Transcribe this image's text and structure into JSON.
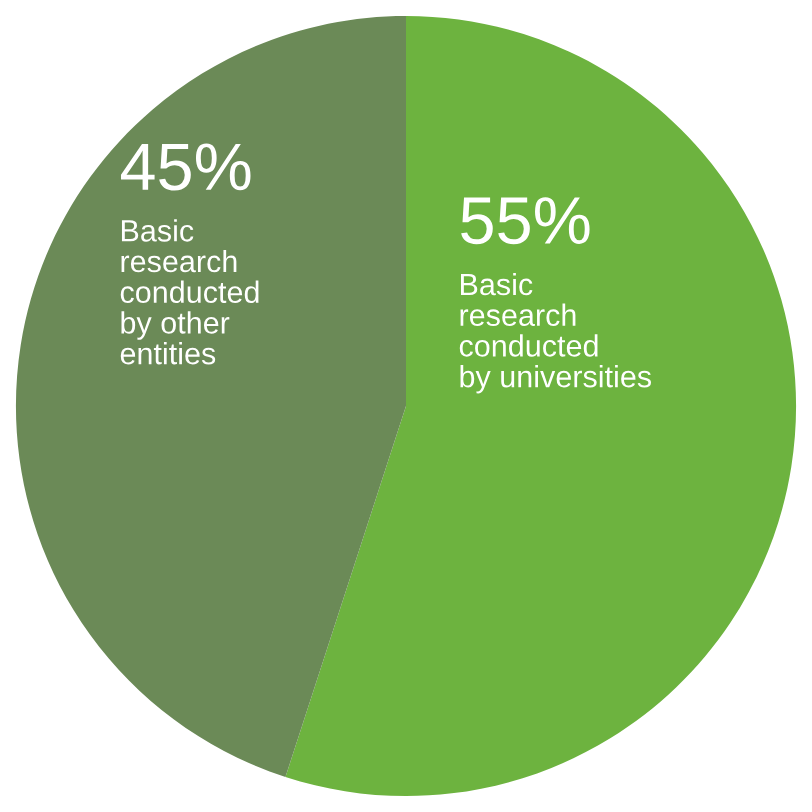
{
  "chart_data": {
    "type": "pie",
    "categories": [
      "Basic\nresearch\nconducted\nby universities",
      "Basic\nresearch\nconducted\nby other\nentities"
    ],
    "values": [
      55,
      45
    ],
    "value_labels": [
      "55%",
      "45%"
    ],
    "colors": [
      "#6db33f",
      "#6b8a57"
    ]
  }
}
